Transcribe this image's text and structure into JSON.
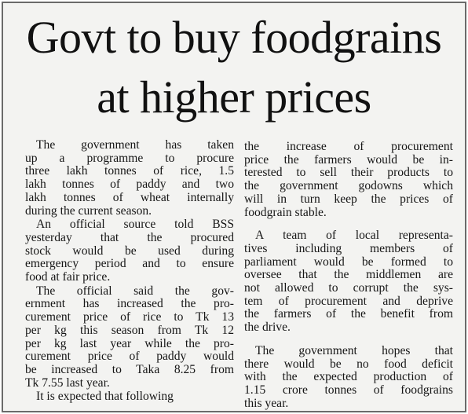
{
  "headline": [
    "Govt to buy foodgrains",
    "at higher prices"
  ],
  "columns": [
    [
      [
        "The government has taken",
        "up a programme to procure",
        "three lakh tonnes of rice, 1.5",
        "lakh tonnes of paddy and two",
        "lakh tonnes of wheat internally",
        "during the current season."
      ],
      [
        "An official source told BSS",
        "yesterday that the procured",
        "stock would be used during",
        "emergency period and to ensure",
        "food at fair price."
      ],
      [
        "The official said the gov-",
        "ernment has increased the pro-",
        "curement price of rice to Tk 13",
        "per kg this season from Tk 12",
        "per kg last year while the pro-",
        "curement price of paddy would",
        "be increased to Taka 8.25 from",
        "Tk 7.55 last year."
      ],
      [
        "It is expected that following"
      ]
    ],
    [
      [
        "the increase of procurement",
        "price the farmers would be in-",
        "terested to sell their products to",
        "the government godowns which",
        "will in turn keep the prices of",
        "foodgrain stable."
      ],
      [
        "A team of local representa-",
        "tives including members of",
        "parliament would be formed to",
        "oversee that the middlemen are",
        "not allowed to corrupt the sys-",
        "tem of procurement and deprive",
        "the farmers of the benefit from",
        "the drive."
      ],
      [
        "The government hopes that",
        "there would be no food deficit",
        "with the expected production of",
        "1.15 crore tonnes of foodgrains",
        "this year."
      ]
    ]
  ]
}
